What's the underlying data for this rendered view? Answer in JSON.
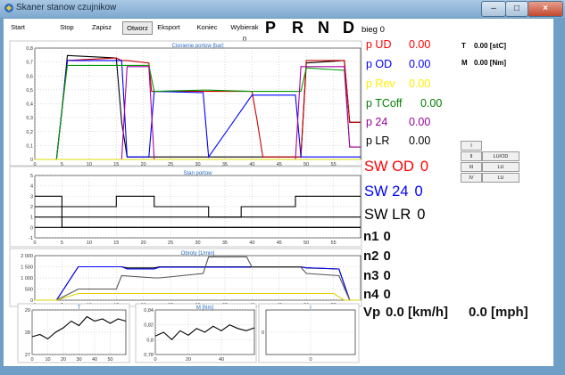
{
  "window": {
    "title": "Skaner stanow czujnikow"
  },
  "toolbar": {
    "start": "Start",
    "stop": "Stop",
    "zapisz": "Zapisz",
    "otworz": "Otworz",
    "eksport": "Eksport",
    "koniec": "Koniec",
    "wybierak": "Wybierak 0"
  },
  "gears": [
    "P",
    "R",
    "N",
    "D"
  ],
  "bieg_label": "bieg 0",
  "params": [
    {
      "label": "p UD",
      "value": "0.00",
      "color": "#ff0000"
    },
    {
      "label": "p OD",
      "value": "0.00",
      "color": "#0000ff"
    },
    {
      "label": "p Rev",
      "value": "0.00",
      "color": "#ffee00"
    },
    {
      "label": "p TCoff",
      "value": "0.00",
      "color": "#008000"
    },
    {
      "label": "p 24",
      "value": "0.00",
      "color": "#990099"
    },
    {
      "label": "p LR",
      "value": "0.00",
      "color": "#000000"
    }
  ],
  "tm": {
    "t_label": "T",
    "t_value": "0.00 [stC]",
    "m_label": "M",
    "m_value": "0.00 [Nm]"
  },
  "clutch_grid": [
    [
      "I",
      ""
    ],
    [
      "II",
      "LU/OD"
    ],
    [
      "III",
      "LU"
    ],
    [
      "IV",
      "LU"
    ]
  ],
  "sw": [
    {
      "label": "SW OD",
      "value": "0",
      "color": "#ff0000"
    },
    {
      "label": "SW 24",
      "value": "0",
      "color": "#0000ff"
    },
    {
      "label": "SW LR",
      "value": "0",
      "color": "#000000"
    }
  ],
  "n_values": [
    {
      "label": "n1",
      "value": "0"
    },
    {
      "label": "n2",
      "value": "0"
    },
    {
      "label": "n3",
      "value": "0"
    },
    {
      "label": "n4",
      "value": "0"
    }
  ],
  "vp": {
    "label": "Vp",
    "kmh": "0.0 [km/h]",
    "mph": "0.0 [mph]"
  },
  "chart_data": [
    {
      "type": "line",
      "title": "Cisnienie portow [bar]",
      "xlim": [
        0,
        60
      ],
      "ylim": [
        0,
        0.9
      ],
      "x_ticks": [
        0,
        5,
        10,
        15,
        20,
        25,
        30,
        35,
        40,
        45,
        50,
        55
      ],
      "y_ticks": [
        "0",
        "0,1",
        "0,2",
        "0,3",
        "0,4",
        "0,5",
        "0,6",
        "0,7",
        "0,8"
      ],
      "series": [
        {
          "color": "#000000",
          "x": [
            0,
            4,
            5,
            6,
            15,
            16,
            17,
            21,
            21.5,
            31,
            32,
            40,
            41,
            42,
            48,
            49,
            50,
            57,
            58,
            60
          ],
          "y": [
            0,
            0,
            0.4,
            0.84,
            0.82,
            0.3,
            0.02,
            0.02,
            0.02,
            0.02,
            0.02,
            0.02,
            0.02,
            0.02,
            0.02,
            0.02,
            0.78,
            0.8,
            0.3,
            0.3
          ]
        },
        {
          "color": "#cc0000",
          "x": [
            0,
            4,
            5,
            6,
            15,
            16,
            17,
            21,
            21.5,
            31,
            32,
            40,
            41,
            42,
            48,
            49,
            50,
            57,
            58,
            60
          ],
          "y": [
            0,
            0,
            0.4,
            0.8,
            0.82,
            0.8,
            0.8,
            0.78,
            0.55,
            0.55,
            0.55,
            0.55,
            0.3,
            0.02,
            0.02,
            0.02,
            0.8,
            0.8,
            0.3,
            0.3
          ]
        },
        {
          "color": "#0000ff",
          "x": [
            0,
            4,
            5,
            6,
            15,
            16,
            17,
            21,
            22,
            31,
            32,
            40,
            41,
            42,
            48,
            49,
            50,
            57,
            58,
            60
          ],
          "y": [
            0,
            0,
            0.4,
            0.8,
            0.8,
            0.8,
            0.02,
            0.02,
            0.55,
            0.54,
            0.02,
            0.52,
            0.52,
            0.52,
            0.52,
            0.02,
            0.02,
            0.02,
            0.02,
            0.02
          ]
        },
        {
          "color": "#009900",
          "x": [
            0,
            4,
            5,
            6,
            15,
            16,
            17,
            21,
            22,
            31,
            32,
            40,
            41,
            42,
            48,
            49,
            50,
            57,
            58,
            60
          ],
          "y": [
            0,
            0,
            0.4,
            0.76,
            0.76,
            0.76,
            0.76,
            0.76,
            0.55,
            0.56,
            0.56,
            0.55,
            0.55,
            0.55,
            0.55,
            0.55,
            0.74,
            0.72,
            0.1,
            0.1
          ]
        },
        {
          "color": "#aa00aa",
          "x": [
            0,
            15,
            16,
            17,
            21,
            22,
            31,
            32,
            40,
            41,
            42,
            48,
            49,
            50,
            57,
            58,
            60
          ],
          "y": [
            0,
            0,
            0,
            0.75,
            0.75,
            0,
            0,
            0,
            0,
            0,
            0,
            0,
            0.75,
            0.75,
            0.75,
            0.1,
            0.1
          ]
        },
        {
          "color": "#dddd00",
          "x": [
            0,
            60
          ],
          "y": [
            0,
            0
          ]
        }
      ]
    },
    {
      "type": "line",
      "title": "Stan portow",
      "xlim": [
        0,
        60
      ],
      "ylim": [
        -1,
        5
      ],
      "x_ticks": [
        0,
        5,
        10,
        15,
        20,
        25,
        30,
        35,
        40,
        45,
        50,
        55
      ],
      "y_ticks": [
        "-1",
        "0",
        "1",
        "2",
        "3",
        "4",
        "5"
      ],
      "series": [
        {
          "color": "#000000",
          "x": [
            0,
            5,
            5,
            60
          ],
          "y": [
            3,
            3,
            0,
            0
          ]
        },
        {
          "color": "#000000",
          "x": [
            0,
            5,
            5,
            15,
            15,
            22,
            22,
            32,
            32,
            38,
            38,
            48,
            48,
            60
          ],
          "y": [
            2,
            2,
            2,
            2,
            3,
            3,
            2,
            2,
            1,
            1,
            2,
            2,
            3,
            3
          ]
        },
        {
          "color": "#000000",
          "x": [
            0,
            60
          ],
          "y": [
            1,
            1
          ]
        },
        {
          "color": "#000000",
          "x": [
            0,
            60
          ],
          "y": [
            0,
            0
          ]
        }
      ]
    },
    {
      "type": "line",
      "title": "Obroty [1/min]",
      "xlim": [
        0,
        60
      ],
      "ylim": [
        0,
        2000
      ],
      "x_ticks": [
        0,
        5,
        10,
        15,
        20,
        25,
        30,
        35,
        40,
        45,
        50,
        55
      ],
      "y_ticks": [
        "0",
        "500",
        "1 000",
        "1 500",
        "2 000"
      ],
      "series": [
        {
          "color": "#000000",
          "x": [
            0,
            4,
            8,
            16,
            17,
            22,
            23,
            30,
            31,
            40,
            41,
            49,
            50,
            56,
            58,
            60
          ],
          "y": [
            0,
            0,
            1500,
            1500,
            1450,
            1450,
            1500,
            1500,
            1500,
            1500,
            1500,
            1500,
            1450,
            1400,
            0,
            0
          ]
        },
        {
          "color": "#0000ff",
          "x": [
            0,
            4,
            8,
            16,
            17,
            22,
            23,
            30,
            31,
            40,
            41,
            49,
            50,
            56,
            58,
            60
          ],
          "y": [
            0,
            0,
            1500,
            1500,
            1400,
            1400,
            1480,
            1480,
            1480,
            1480,
            1480,
            1480,
            1460,
            1400,
            0,
            0
          ]
        },
        {
          "color": "#555555",
          "x": [
            0,
            4,
            8,
            15,
            16,
            22,
            23,
            31,
            32,
            39,
            40,
            49,
            50,
            56,
            58,
            60
          ],
          "y": [
            0,
            0,
            500,
            500,
            1100,
            1000,
            1000,
            1200,
            1950,
            1950,
            1480,
            1480,
            1200,
            1100,
            0,
            0
          ]
        },
        {
          "color": "#e0d000",
          "x": [
            0,
            4,
            8,
            55,
            57,
            60
          ],
          "y": [
            0,
            0,
            300,
            300,
            0,
            0
          ]
        }
      ]
    },
    {
      "type": "line",
      "title": "T",
      "xlim": [
        0,
        60
      ],
      "ylim": [
        27,
        29
      ],
      "x_ticks": [
        0,
        10,
        20,
        30,
        40,
        50
      ],
      "y_ticks": [
        "27",
        "28",
        "29"
      ],
      "series": [
        {
          "color": "#000000",
          "x": [
            0,
            5,
            10,
            15,
            20,
            25,
            30,
            35,
            40,
            45,
            50,
            55,
            60
          ],
          "y": [
            27.8,
            27.9,
            27.7,
            28.0,
            28.2,
            28.5,
            28.3,
            28.7,
            28.5,
            28.6,
            28.4,
            28.6,
            28.5
          ]
        }
      ]
    },
    {
      "type": "line",
      "title": "M [Nm]",
      "xlim": [
        0,
        60
      ],
      "ylim": [
        0.78,
        0.84
      ],
      "x_ticks": [
        0,
        20,
        40
      ],
      "y_ticks": [
        "0,78",
        "0,8",
        "0,82",
        "0,84"
      ],
      "series": [
        {
          "color": "#000000",
          "x": [
            0,
            5,
            10,
            15,
            20,
            25,
            30,
            35,
            40,
            45,
            50,
            55,
            60
          ],
          "y": [
            0.805,
            0.81,
            0.8,
            0.812,
            0.806,
            0.815,
            0.81,
            0.818,
            0.812,
            0.82,
            0.815,
            0.812,
            0.816
          ]
        }
      ]
    },
    {
      "type": "line",
      "title": "I",
      "xlim": [
        -1,
        1
      ],
      "ylim": [
        -1,
        1
      ],
      "x_ticks": [
        0
      ],
      "y_ticks": [
        "0"
      ],
      "series": []
    }
  ]
}
